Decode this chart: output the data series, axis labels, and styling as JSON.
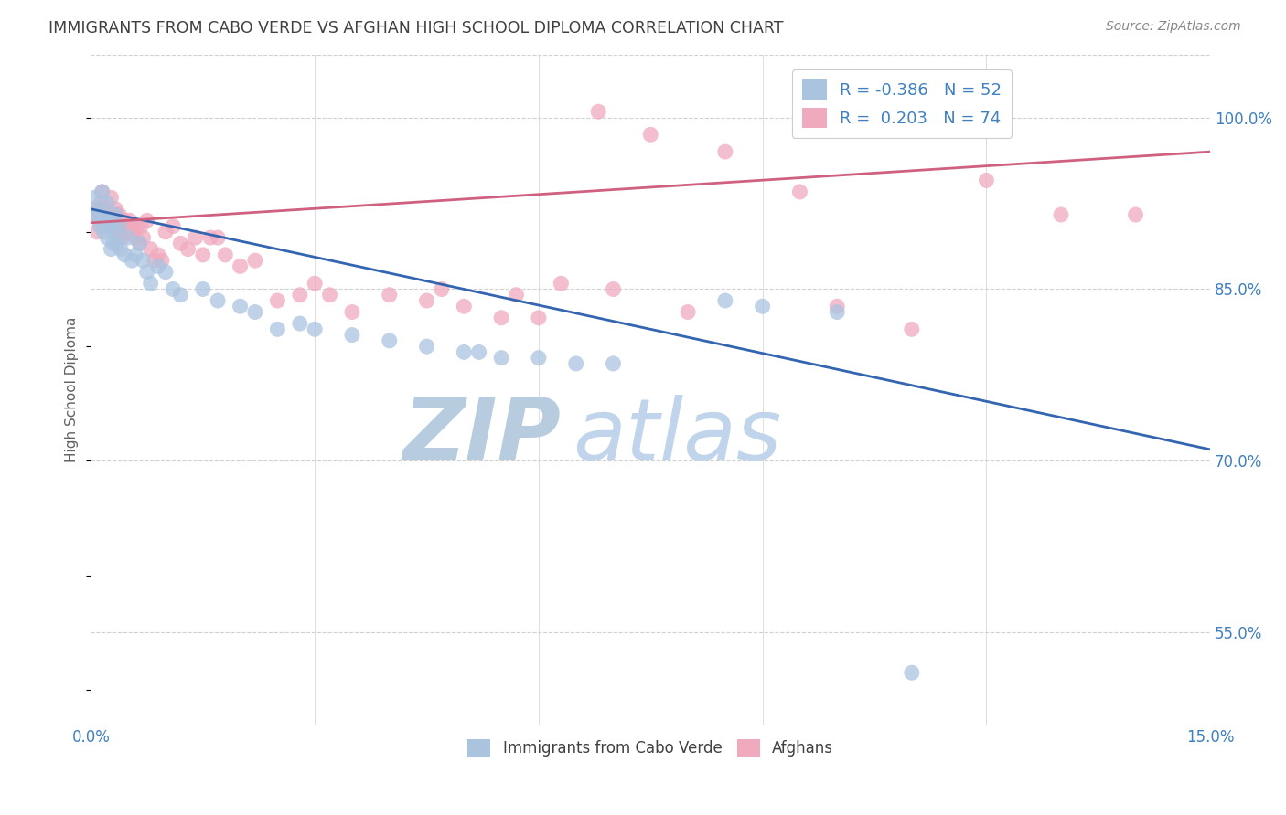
{
  "title": "IMMIGRANTS FROM CABO VERDE VS AFGHAN HIGH SCHOOL DIPLOMA CORRELATION CHART",
  "source": "Source: ZipAtlas.com",
  "ylabel": "High School Diploma",
  "yticks": [
    55.0,
    70.0,
    85.0,
    100.0
  ],
  "ytick_labels": [
    "55.0%",
    "70.0%",
    "85.0%",
    "100.0%"
  ],
  "xlim": [
    0.0,
    15.0
  ],
  "ylim": [
    47.0,
    105.5
  ],
  "watermark_zip": "ZIP",
  "watermark_atlas": "atlas",
  "legend_blue_r": "-0.386",
  "legend_blue_n": "52",
  "legend_pink_r": "0.203",
  "legend_pink_n": "74",
  "cabo_verde_x": [
    0.05,
    0.08,
    0.1,
    0.12,
    0.13,
    0.15,
    0.17,
    0.18,
    0.2,
    0.22,
    0.22,
    0.25,
    0.27,
    0.28,
    0.3,
    0.32,
    0.33,
    0.35,
    0.38,
    0.4,
    0.45,
    0.5,
    0.55,
    0.6,
    0.65,
    0.7,
    0.75,
    0.8,
    0.9,
    1.0,
    1.1,
    1.2,
    1.5,
    1.7,
    2.0,
    2.2,
    2.5,
    2.8,
    3.0,
    3.5,
    4.0,
    4.5,
    5.0,
    5.5,
    6.0,
    7.0,
    8.5,
    9.0,
    10.0,
    11.0,
    5.2,
    6.5
  ],
  "cabo_verde_y": [
    93.0,
    91.5,
    92.0,
    90.5,
    91.5,
    93.5,
    90.0,
    91.0,
    91.0,
    92.5,
    89.5,
    91.0,
    88.5,
    90.5,
    89.0,
    90.0,
    91.5,
    89.0,
    90.5,
    88.5,
    88.0,
    89.5,
    87.5,
    88.0,
    89.0,
    87.5,
    86.5,
    85.5,
    87.0,
    86.5,
    85.0,
    84.5,
    85.0,
    84.0,
    83.5,
    83.0,
    81.5,
    82.0,
    81.5,
    81.0,
    80.5,
    80.0,
    79.5,
    79.0,
    79.0,
    78.5,
    84.0,
    83.5,
    83.0,
    51.5,
    79.5,
    78.5
  ],
  "afghan_x": [
    0.04,
    0.06,
    0.08,
    0.1,
    0.12,
    0.13,
    0.15,
    0.17,
    0.18,
    0.2,
    0.22,
    0.23,
    0.25,
    0.27,
    0.28,
    0.3,
    0.32,
    0.33,
    0.35,
    0.37,
    0.38,
    0.4,
    0.42,
    0.45,
    0.47,
    0.5,
    0.52,
    0.55,
    0.57,
    0.6,
    0.62,
    0.65,
    0.67,
    0.7,
    0.75,
    0.8,
    0.85,
    0.9,
    0.95,
    1.0,
    1.1,
    1.2,
    1.3,
    1.4,
    1.5,
    1.6,
    1.7,
    1.8,
    2.0,
    2.2,
    2.5,
    2.8,
    3.0,
    3.2,
    3.5,
    4.0,
    4.5,
    5.0,
    5.5,
    6.0,
    7.0,
    8.0,
    10.0,
    11.0,
    6.8,
    7.5,
    8.5,
    9.5,
    12.0,
    13.0,
    14.0,
    4.7,
    5.7,
    6.3
  ],
  "afghan_y": [
    92.0,
    91.5,
    90.0,
    92.0,
    91.0,
    92.5,
    93.5,
    91.5,
    91.0,
    92.0,
    91.5,
    90.5,
    91.0,
    93.0,
    91.0,
    91.0,
    90.5,
    92.0,
    91.5,
    89.5,
    91.5,
    90.5,
    89.5,
    91.0,
    90.0,
    90.5,
    91.0,
    90.0,
    90.5,
    89.5,
    90.5,
    89.0,
    90.5,
    89.5,
    91.0,
    88.5,
    87.5,
    88.0,
    87.5,
    90.0,
    90.5,
    89.0,
    88.5,
    89.5,
    88.0,
    89.5,
    89.5,
    88.0,
    87.0,
    87.5,
    84.0,
    84.5,
    85.5,
    84.5,
    83.0,
    84.5,
    84.0,
    83.5,
    82.5,
    82.5,
    85.0,
    83.0,
    83.5,
    81.5,
    100.5,
    98.5,
    97.0,
    93.5,
    94.5,
    91.5,
    91.5,
    85.0,
    84.5,
    85.5
  ],
  "blue_line_x0": 0.0,
  "blue_line_y0": 92.0,
  "blue_line_x1": 15.0,
  "blue_line_y1": 71.0,
  "pink_line_x0": 0.0,
  "pink_line_y0": 90.8,
  "pink_line_x1": 15.0,
  "pink_line_y1": 97.0,
  "blue_dot_color": "#aac4e0",
  "pink_dot_color": "#f0aabe",
  "blue_line_color": "#3465b0",
  "pink_line_color": "#d06080",
  "title_color": "#404040",
  "axis_label_color": "#4080c0",
  "grid_color": "#d0d0d0",
  "watermark_color_zip": "#b8cce0",
  "watermark_color_atlas": "#c0d4ec"
}
